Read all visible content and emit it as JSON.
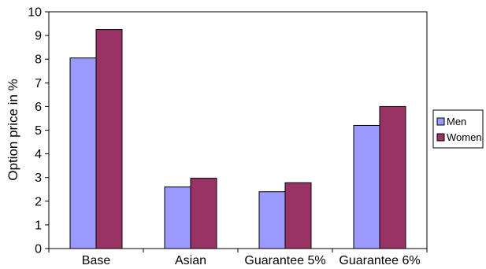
{
  "chart_data": {
    "type": "bar",
    "categories": [
      "Base",
      "Asian",
      "Guarantee 5%",
      "Guarantee 6%"
    ],
    "series": [
      {
        "name": "Men",
        "values": [
          8.05,
          2.6,
          2.4,
          5.2
        ],
        "color": "#9999ff"
      },
      {
        "name": "Women",
        "values": [
          9.25,
          2.97,
          2.78,
          6.0
        ],
        "color": "#993366"
      }
    ],
    "title": "",
    "xlabel": "",
    "ylabel": "Option price in %",
    "ylim": [
      0,
      10
    ],
    "yticks": [
      "0",
      "1",
      "2",
      "3",
      "4",
      "5",
      "6",
      "7",
      "8",
      "9",
      "10"
    ],
    "grid": false,
    "legend_position": "right"
  }
}
